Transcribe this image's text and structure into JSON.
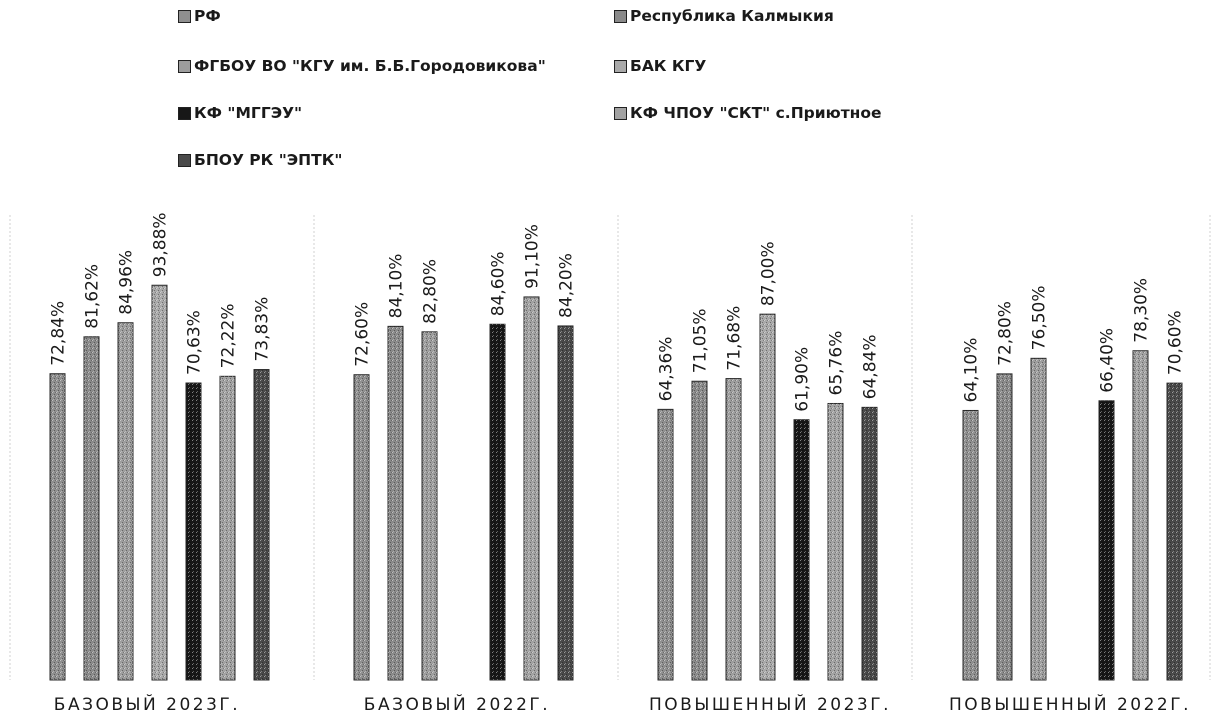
{
  "chart_data": {
    "type": "bar",
    "title": "",
    "xlabel": "",
    "ylabel": "",
    "ylim": [
      0,
      100
    ],
    "grid": false,
    "legend_position": "top",
    "categories": [
      "БАЗОВЫЙ 2023Г.",
      "БАЗОВЫЙ 2022Г.",
      "ПОВЫШЕННЫЙ 2023Г.",
      "ПОВЫШЕННЫЙ 2022Г."
    ],
    "series": [
      {
        "name": "РФ",
        "color": "#8f8f8f",
        "values": [
          72.84,
          72.6,
          64.36,
          64.1
        ],
        "labels": [
          "72,84%",
          "72,60%",
          "64,36%",
          "64,10%"
        ]
      },
      {
        "name": "Республика Калмыкия",
        "color": "#8a8a8a",
        "values": [
          81.62,
          84.1,
          71.05,
          72.8
        ],
        "labels": [
          "81,62%",
          "84,10%",
          "71,05%",
          "72,80%"
        ]
      },
      {
        "name": "ФГБОУ ВО \"КГУ им. Б.Б.Городовикова\"",
        "color": "#9d9d9d",
        "values": [
          84.96,
          82.8,
          71.68,
          76.5
        ],
        "labels": [
          "84,96%",
          "82,80%",
          "71,68%",
          "76,50%"
        ]
      },
      {
        "name": "БАК КГУ",
        "color": "#a9a9a9",
        "values": [
          93.88,
          null,
          87.0,
          null
        ],
        "labels": [
          "93,88%",
          "",
          "87,00%",
          ""
        ]
      },
      {
        "name": "КФ \"МГГЭУ\"",
        "color": "#171717",
        "values": [
          70.63,
          84.6,
          61.9,
          66.4
        ],
        "labels": [
          "70,63%",
          "84,60%",
          "61,90%",
          "66,40%"
        ]
      },
      {
        "name": "КФ ЧПОУ \"СКТ\" с.Приютное",
        "color": "#a2a2a2",
        "values": [
          72.22,
          91.1,
          65.76,
          78.3
        ],
        "labels": [
          "72,22%",
          "91,10%",
          "65,76%",
          "78,30%"
        ]
      },
      {
        "name": "БПОУ РК \"ЭПТК\"",
        "color": "#4a4a4a",
        "values": [
          73.83,
          84.2,
          64.84,
          70.6
        ],
        "labels": [
          "73,83%",
          "84,20%",
          "64,84%",
          "70,60%"
        ]
      }
    ]
  }
}
